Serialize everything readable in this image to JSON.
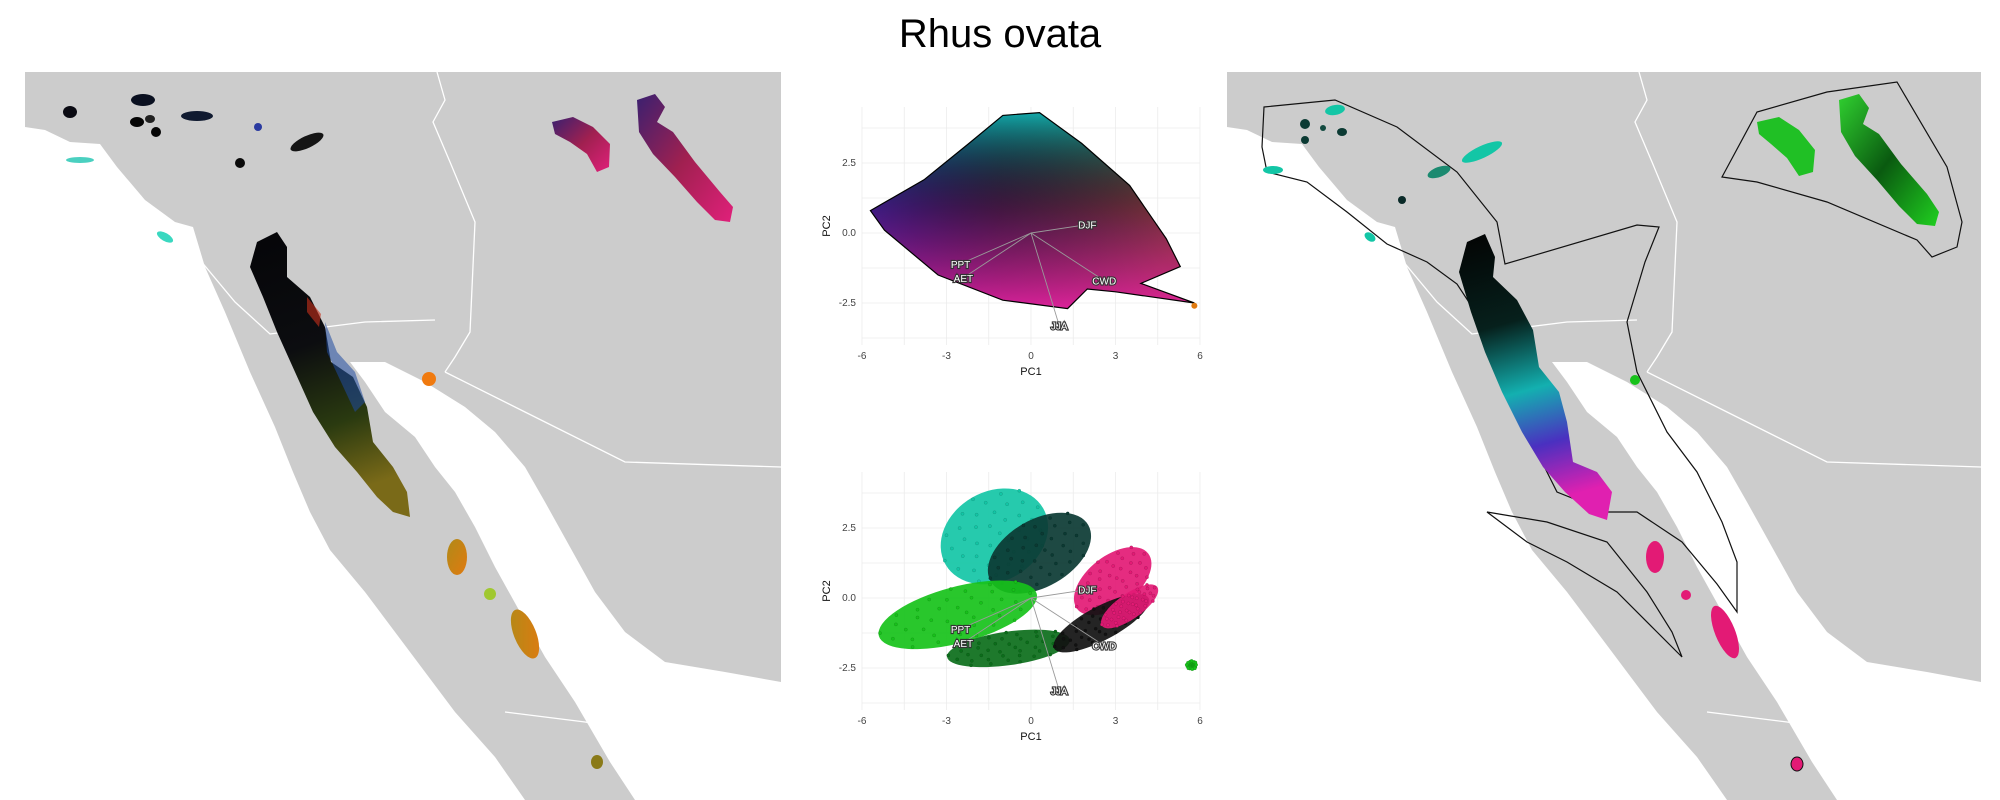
{
  "title": "Rhus ovata",
  "colors": {
    "land": "#cccccc",
    "water": "#ffffff",
    "border": "#ffffff",
    "ink": "#000000",
    "cyan": "#13c6a6",
    "green": "#17c21a",
    "magenta": "#e31a75",
    "orange": "#f07a0f"
  },
  "chart_data": [
    {
      "type": "scatter",
      "panel": "pca-top",
      "xlabel": "PC1",
      "ylabel": "PC2",
      "xticks": [
        -6,
        -3,
        0,
        3,
        6
      ],
      "yticks": [
        2.5,
        0.0,
        -2.5
      ],
      "xtick_labels": [
        "-6",
        "-3",
        "0",
        "3",
        "6"
      ],
      "ytick_labels": [
        "2.5",
        "0.0",
        "-2.5"
      ],
      "xlim": [
        -6,
        6
      ],
      "ylim": [
        -4,
        4.5
      ],
      "grid": true,
      "vectors": [
        {
          "label": "DJF",
          "x": 2.0,
          "y": 0.3
        },
        {
          "label": "PPT",
          "x": -2.5,
          "y": -1.1
        },
        {
          "label": "AET",
          "x": -2.4,
          "y": -1.6
        },
        {
          "label": "CWD",
          "x": 2.6,
          "y": -1.7
        },
        {
          "label": "JJA",
          "x": 1.0,
          "y": -3.3
        }
      ],
      "hull": [
        [
          -5.7,
          0.8
        ],
        [
          -3.8,
          1.9
        ],
        [
          -2.2,
          3.2
        ],
        [
          -1.0,
          4.2
        ],
        [
          0.3,
          4.3
        ],
        [
          1.8,
          3.2
        ],
        [
          3.5,
          1.7
        ],
        [
          4.8,
          -0.2
        ],
        [
          5.3,
          -1.2
        ],
        [
          3.9,
          -1.8
        ],
        [
          5.8,
          -2.5
        ],
        [
          3.0,
          -2.1
        ],
        [
          2.0,
          -2.0
        ],
        [
          1.3,
          -2.7
        ],
        [
          -1.0,
          -2.4
        ],
        [
          -3.3,
          -1.5
        ],
        [
          -5.2,
          0.1
        ]
      ]
    },
    {
      "type": "scatter",
      "panel": "pca-bottom",
      "xlabel": "PC1",
      "ylabel": "PC2",
      "xticks": [
        -6,
        -3,
        0,
        3,
        6
      ],
      "yticks": [
        2.5,
        0.0,
        -2.5
      ],
      "xtick_labels": [
        "-6",
        "-3",
        "0",
        "3",
        "6"
      ],
      "ytick_labels": [
        "2.5",
        "0.0",
        "-2.5"
      ],
      "xlim": [
        -6,
        6
      ],
      "ylim": [
        -4,
        4.5
      ],
      "grid": true,
      "vectors": [
        {
          "label": "DJF",
          "x": 2.0,
          "y": 0.3
        },
        {
          "label": "PPT",
          "x": -2.5,
          "y": -1.1
        },
        {
          "label": "AET",
          "x": -2.4,
          "y": -1.6
        },
        {
          "label": "CWD",
          "x": 2.6,
          "y": -1.7
        },
        {
          "label": "JJA",
          "x": 1.0,
          "y": -3.3
        }
      ],
      "clusters": [
        {
          "color": "#13c6a6",
          "cx": -1.3,
          "cy": 2.2,
          "rx": 2.0,
          "ry": 1.6,
          "angle": -30
        },
        {
          "color": "#0b3a33",
          "cx": 0.3,
          "cy": 1.6,
          "rx": 2.0,
          "ry": 1.2,
          "angle": -30
        },
        {
          "color": "#e31a75",
          "cx": 2.9,
          "cy": 0.6,
          "rx": 1.6,
          "ry": 0.9,
          "angle": -38
        },
        {
          "color": "#17c21a",
          "cx": -2.6,
          "cy": -0.6,
          "rx": 2.9,
          "ry": 1.0,
          "angle": -15
        },
        {
          "color": "#0b6e1a",
          "cx": -0.8,
          "cy": -1.8,
          "rx": 2.2,
          "ry": 0.6,
          "angle": -8
        },
        {
          "color": "#111111",
          "cx": 2.5,
          "cy": -0.9,
          "rx": 1.9,
          "ry": 0.6,
          "angle": -28
        },
        {
          "color": "#e31a75",
          "cx": 3.5,
          "cy": -0.3,
          "rx": 1.2,
          "ry": 0.45,
          "angle": -35
        },
        {
          "color": "#17c21a",
          "cx": 5.7,
          "cy": -2.4,
          "rx": 0.18,
          "ry": 0.16,
          "angle": 0
        }
      ]
    }
  ]
}
